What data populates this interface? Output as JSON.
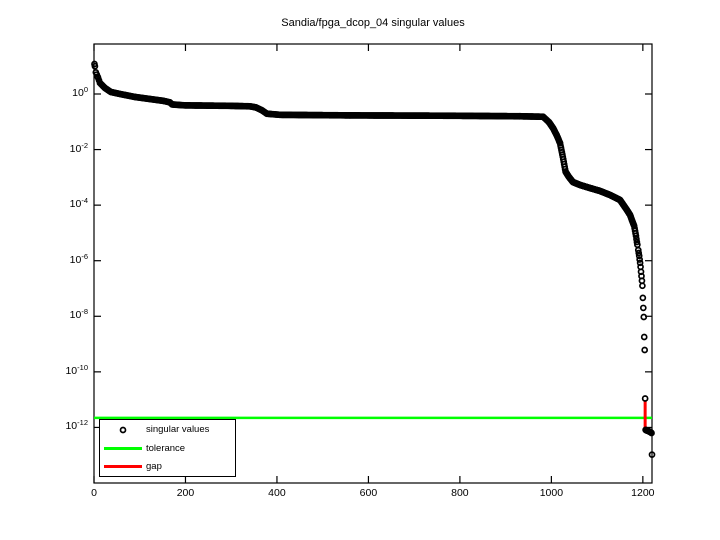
{
  "chart_data": {
    "type": "scatter",
    "title": "Sandia/fpga_dcop_04 singular values",
    "xlabel": "",
    "ylabel": "",
    "n_values": 1220,
    "xlim": [
      0,
      1220
    ],
    "ylim": [
      1e-14,
      63
    ],
    "yscale": "log",
    "x_ticks": [
      0,
      200,
      400,
      600,
      800,
      1000,
      1200
    ],
    "y_tick_exponents": [
      0,
      -2,
      -4,
      -6,
      -8,
      -10,
      -12
    ],
    "grid": false,
    "legend": {
      "position": "southwest",
      "entries": [
        {
          "label": "singular values",
          "marker": "circle",
          "color": "#000000"
        },
        {
          "label": "tolerance",
          "marker": "line",
          "color": "#00ff00"
        },
        {
          "label": "gap",
          "marker": "line",
          "color": "#ff0000"
        }
      ]
    },
    "series": [
      {
        "name": "singular values",
        "marker": "circle",
        "color": "#000000",
        "anchors_index_value": [
          [
            1,
            12
          ],
          [
            2,
            10
          ],
          [
            4,
            6
          ],
          [
            9,
            3.8
          ],
          [
            13,
            2.5
          ],
          [
            24,
            1.64
          ],
          [
            37,
            1.18
          ],
          [
            57,
            1.0
          ],
          [
            90,
            0.78
          ],
          [
            122,
            0.66
          ],
          [
            151,
            0.57
          ],
          [
            166,
            0.5
          ],
          [
            171,
            0.42
          ],
          [
            199,
            0.39
          ],
          [
            297,
            0.375
          ],
          [
            341,
            0.36
          ],
          [
            354,
            0.33
          ],
          [
            367,
            0.26
          ],
          [
            378,
            0.195
          ],
          [
            407,
            0.178
          ],
          [
            560,
            0.17
          ],
          [
            778,
            0.165
          ],
          [
            931,
            0.158
          ],
          [
            982,
            0.152
          ],
          [
            995,
            0.096
          ],
          [
            1004,
            0.058
          ],
          [
            1012,
            0.032
          ],
          [
            1019,
            0.017
          ],
          [
            1023,
            0.008
          ],
          [
            1026,
            0.0045
          ],
          [
            1031,
            0.0016
          ],
          [
            1038,
            0.00105
          ],
          [
            1047,
            0.00068
          ],
          [
            1063,
            0.00053
          ],
          [
            1084,
            0.000415
          ],
          [
            1106,
            0.000325
          ],
          [
            1128,
            0.000233
          ],
          [
            1150,
            0.000154
          ],
          [
            1165,
            6.75e-05
          ],
          [
            1172,
            4.45e-05
          ],
          [
            1176,
            2.93e-05
          ],
          [
            1181,
            1.79e-05
          ],
          [
            1183,
            1.18e-05
          ],
          [
            1185,
            7.8e-06
          ],
          [
            1187,
            4.7e-06
          ],
          [
            1189,
            3e-06
          ]
        ],
        "tail_index_value": [
          [
            1190,
            2.4e-06
          ],
          [
            1191,
            1.9e-06
          ],
          [
            1192,
            1.5e-06
          ],
          [
            1193,
            1.1e-06
          ],
          [
            1194,
            8.4e-07
          ],
          [
            1195,
            6e-07
          ],
          [
            1196,
            4e-07
          ],
          [
            1197,
            2.8e-07
          ],
          [
            1198,
            1.9e-07
          ],
          [
            1199,
            1.25e-07
          ],
          [
            1200,
            4.6e-08
          ],
          [
            1201,
            2e-08
          ],
          [
            1202,
            9.4e-09
          ],
          [
            1203,
            1.8e-09
          ],
          [
            1204,
            6.1e-10
          ],
          [
            1205,
            1.1e-11
          ],
          [
            1206,
            8.2e-13
          ],
          [
            1207,
            8e-13
          ],
          [
            1208,
            7.9e-13
          ],
          [
            1209,
            7.7e-13
          ],
          [
            1210,
            7.6e-13
          ],
          [
            1211,
            7.5e-13
          ],
          [
            1212,
            7.4e-13
          ],
          [
            1213,
            7.3e-13
          ],
          [
            1214,
            7.1e-13
          ],
          [
            1215,
            7e-13
          ],
          [
            1216,
            6.9e-13
          ],
          [
            1217,
            6.7e-13
          ],
          [
            1218,
            6.5e-13
          ],
          [
            1219,
            6.3e-13
          ],
          [
            1220,
            1.05e-13
          ]
        ]
      },
      {
        "name": "tolerance",
        "type": "hline",
        "value": 2.2e-12,
        "color": "#00ff00"
      },
      {
        "name": "gap",
        "type": "vline",
        "index": 1205,
        "from": 1.1e-11,
        "to": 8.2e-13,
        "color": "#ff0000"
      }
    ]
  }
}
